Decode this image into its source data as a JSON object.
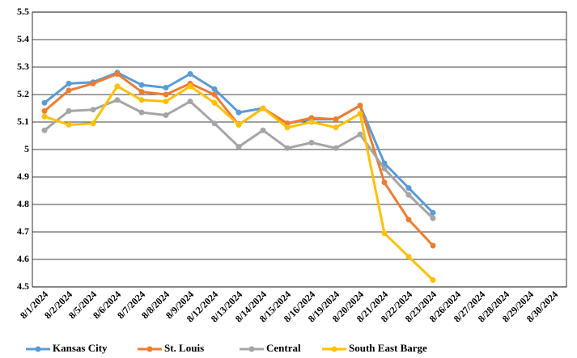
{
  "chart_data": {
    "type": "line",
    "categories": [
      "8/1/2024",
      "8/2/2024",
      "8/5/2024",
      "8/6/2024",
      "8/7/2024",
      "8/8/2024",
      "8/9/2024",
      "8/12/2024",
      "8/13/2024",
      "8/14/2024",
      "8/15/2024",
      "8/16/2024",
      "8/19/2024",
      "8/20/2024",
      "8/21/2024",
      "8/22/2024",
      "8/23/2024",
      "8/26/2024",
      "8/27/2024",
      "8/28/2024",
      "8/29/2024",
      "8/30/2024"
    ],
    "series": [
      {
        "name": "Kansas City",
        "color": "#5b9bd5",
        "values": [
          5.17,
          5.24,
          5.245,
          5.28,
          5.235,
          5.225,
          5.275,
          5.22,
          5.135,
          5.15,
          5.095,
          5.11,
          5.11,
          5.16,
          4.95,
          4.86,
          4.77,
          null,
          null,
          null,
          null,
          null
        ]
      },
      {
        "name": "St. Louis",
        "color": "#ed7d31",
        "values": [
          5.14,
          5.215,
          5.24,
          5.275,
          5.21,
          5.2,
          5.24,
          5.2,
          5.09,
          5.15,
          5.095,
          5.115,
          5.11,
          5.16,
          4.88,
          4.745,
          4.65,
          null,
          null,
          null,
          null,
          null
        ]
      },
      {
        "name": "Central",
        "color": "#a5a5a5",
        "values": [
          5.07,
          5.14,
          5.145,
          5.18,
          5.135,
          5.125,
          5.175,
          5.095,
          5.01,
          5.07,
          5.005,
          5.025,
          5.005,
          5.055,
          4.93,
          4.835,
          4.75,
          null,
          null,
          null,
          null,
          null
        ]
      },
      {
        "name": "South East Barge",
        "color": "#ffc000",
        "values": [
          5.12,
          5.09,
          5.095,
          5.23,
          5.18,
          5.175,
          5.23,
          5.17,
          5.09,
          5.15,
          5.08,
          5.1,
          5.08,
          5.13,
          4.695,
          4.61,
          4.525,
          null,
          null,
          null,
          null,
          null
        ]
      }
    ],
    "ylim": [
      4.5,
      5.5
    ],
    "yticks": [
      4.5,
      4.6,
      4.7,
      4.8,
      4.9,
      5,
      5.1,
      5.2,
      5.3,
      5.4,
      5.5
    ],
    "grid": true,
    "legend": "bottom"
  }
}
